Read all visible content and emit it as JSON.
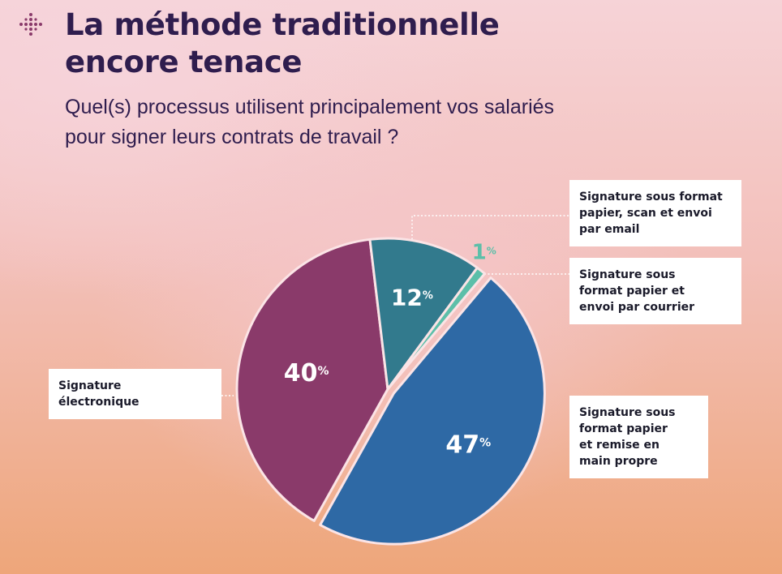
{
  "header": {
    "title_lines": [
      "La méthode traditionnelle",
      "encore tenace"
    ],
    "subtitle_lines": [
      "Quel(s) processus utilisent principalement vos salariés",
      "pour signer leurs contrats de travail ?"
    ],
    "logo_icon": "dotted-cross-icon"
  },
  "chart_data": {
    "type": "pie",
    "title": "La méthode traditionnelle encore tenace",
    "subtitle": "Quel(s) processus utilisent principalement vos salariés pour signer leurs contrats de travail ?",
    "value_suffix": "%",
    "slices": [
      {
        "label_lines": [
          "Signature sous",
          "format papier",
          "et remise en",
          "main propre"
        ],
        "value": 47,
        "color": "#2e69a5",
        "label_color": "#ffffff"
      },
      {
        "label_lines": [
          "Signature",
          "électronique"
        ],
        "value": 40,
        "color": "#8a3a6a",
        "label_color": "#ffffff"
      },
      {
        "label_lines": [
          "Signature sous format",
          "papier, scan et envoi",
          "par email"
        ],
        "value": 12,
        "color": "#327a8d",
        "label_color": "#ffffff"
      },
      {
        "label_lines": [
          "Signature sous",
          "format papier et",
          "envoi par courrier"
        ],
        "value": 1,
        "color": "#5cbfa9",
        "label_color": "#5cbfa9"
      }
    ]
  }
}
